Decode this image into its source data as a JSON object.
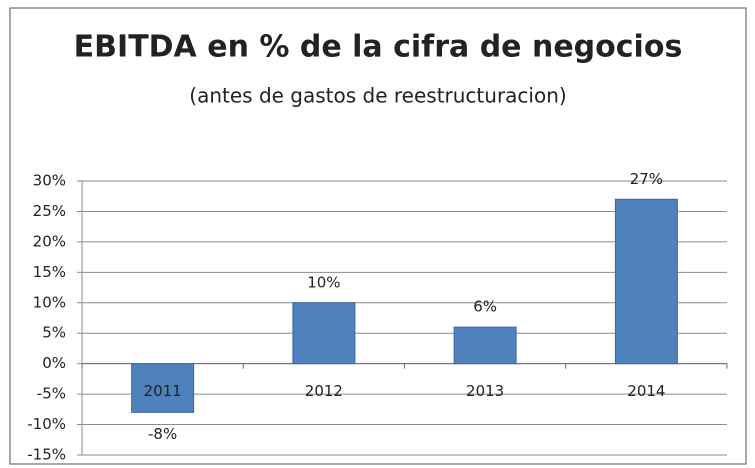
{
  "chart_data": {
    "type": "bar",
    "title": "EBITDA en % de la cifra de negocios",
    "subtitle": "(antes de gastos de reestructuracion)",
    "categories": [
      "2011",
      "2012",
      "2013",
      "2014"
    ],
    "values": [
      -8,
      10,
      6,
      27
    ],
    "value_labels": [
      "-8%",
      "10%",
      "6%",
      "27%"
    ],
    "color": "#4f81bd",
    "ylim": [
      -15,
      30
    ],
    "yticks": [
      {
        "value": -15,
        "label": "-15%"
      },
      {
        "value": -10,
        "label": "-10%"
      },
      {
        "value": -5,
        "label": "-5%"
      },
      {
        "value": 0,
        "label": "0%"
      },
      {
        "value": 5,
        "label": "5%"
      },
      {
        "value": 10,
        "label": "10%"
      },
      {
        "value": 15,
        "label": "15%"
      },
      {
        "value": 20,
        "label": "20%"
      },
      {
        "value": 25,
        "label": "25%"
      },
      {
        "value": 30,
        "label": "30%"
      }
    ],
    "grid": true
  }
}
